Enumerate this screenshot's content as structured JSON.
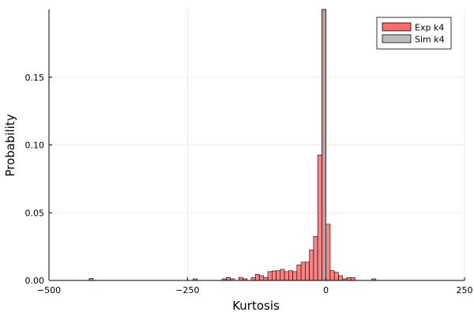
{
  "chart_data": {
    "type": "bar",
    "title": "",
    "xlabel": "Kurtosis",
    "ylabel": "Probability",
    "xlim": [
      -500,
      250
    ],
    "ylim": [
      0,
      0.2
    ],
    "x_ticks": [
      -500,
      -250,
      0,
      250
    ],
    "x_tick_labels": [
      "−500",
      "−250",
      "0",
      "250"
    ],
    "y_ticks": [
      0,
      0.05,
      0.1,
      0.15
    ],
    "y_tick_labels": [
      "0.00",
      "0.05",
      "0.10",
      "0.15"
    ],
    "grid": true,
    "legend_position": "top-right",
    "bin_width": 7.5,
    "series": [
      {
        "name": "Exp k4",
        "color": "#ff6b6b",
        "bars": [
          {
            "x": -427.5,
            "y": 0.0015
          },
          {
            "x": -240,
            "y": 0.0012
          },
          {
            "x": -187.5,
            "y": 0.0012
          },
          {
            "x": -180,
            "y": 0.0022
          },
          {
            "x": -172.5,
            "y": 0.0012
          },
          {
            "x": -157.5,
            "y": 0.0022
          },
          {
            "x": -150,
            "y": 0.0012
          },
          {
            "x": -135,
            "y": 0.0022
          },
          {
            "x": -127.5,
            "y": 0.0045
          },
          {
            "x": -120,
            "y": 0.0035
          },
          {
            "x": -112.5,
            "y": 0.0022
          },
          {
            "x": -105,
            "y": 0.0065
          },
          {
            "x": -97.5,
            "y": 0.007
          },
          {
            "x": -90,
            "y": 0.0072
          },
          {
            "x": -82.5,
            "y": 0.0082
          },
          {
            "x": -75,
            "y": 0.0065
          },
          {
            "x": -67.5,
            "y": 0.0072
          },
          {
            "x": -60,
            "y": 0.0065
          },
          {
            "x": -52.5,
            "y": 0.0115
          },
          {
            "x": -45,
            "y": 0.0135
          },
          {
            "x": -37.5,
            "y": 0.0135
          },
          {
            "x": -30,
            "y": 0.0225
          },
          {
            "x": -22.5,
            "y": 0.0325
          },
          {
            "x": -15,
            "y": 0.0925
          },
          {
            "x": -7.5,
            "y": 0.2
          },
          {
            "x": 0,
            "y": 0.0415
          },
          {
            "x": 7.5,
            "y": 0.0072
          },
          {
            "x": 15,
            "y": 0.006
          },
          {
            "x": 22.5,
            "y": 0.0035
          },
          {
            "x": 30,
            "y": 0.0012
          },
          {
            "x": 37.5,
            "y": 0.0022
          },
          {
            "x": 45,
            "y": 0.0022
          },
          {
            "x": 82.5,
            "y": 0.0012
          }
        ]
      },
      {
        "name": "Sim k4",
        "color": "#a8a8a8",
        "bars": [
          {
            "x": -7.5,
            "y": 0.2
          }
        ]
      }
    ]
  }
}
